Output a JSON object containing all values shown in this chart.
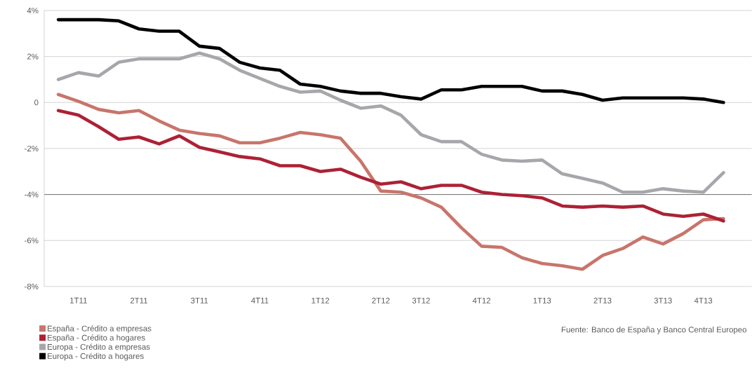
{
  "chart_data": {
    "type": "line",
    "categories": [
      null,
      "1T11",
      null,
      null,
      "2T11",
      null,
      null,
      "3T11",
      null,
      null,
      "4T11",
      null,
      null,
      "1T12",
      null,
      null,
      "2T12",
      null,
      "3T12",
      null,
      null,
      "4T12",
      null,
      null,
      "1T13",
      null,
      null,
      "2T13",
      null,
      null,
      "3T13",
      null,
      "4T13",
      null
    ],
    "ylim": [
      -8,
      4
    ],
    "yticks": [
      {
        "value": -8,
        "label": "-8%"
      },
      {
        "value": -6,
        "label": "-6%"
      },
      {
        "value": -4,
        "label": "-4%"
      },
      {
        "value": -2,
        "label": "-2%"
      },
      0,
      {
        "value": 2,
        "label": "2%"
      },
      {
        "value": 4,
        "label": "4%"
      }
    ],
    "grid": "y",
    "legend": "bottom left",
    "line_style": "solid",
    "ref_lines": [
      {
        "axis": "y",
        "value": -4,
        "color": "#595959"
      }
    ],
    "annotations": [
      "Fuente: Banco de España y Banco Central Europeo"
    ],
    "series": [
      {
        "name": "España - Crédito a empresas",
        "color": "#c8756b",
        "values": [
          0.35,
          0.05,
          -0.3,
          -0.45,
          -0.35,
          -0.8,
          -1.2,
          -1.35,
          -1.45,
          -1.75,
          -1.75,
          -1.55,
          -1.3,
          -1.4,
          -1.55,
          -2.55,
          -3.85,
          -3.9,
          -4.15,
          -4.55,
          -5.45,
          -6.25,
          -6.3,
          -6.75,
          -7.0,
          -7.1,
          -7.25,
          -6.65,
          -6.35,
          -5.85,
          -6.15,
          -5.7,
          -5.1,
          -5.05
        ]
      },
      {
        "name": "España - Crédito a hogares",
        "color": "#ad2135",
        "values": [
          -0.35,
          -0.55,
          -1.05,
          -1.6,
          -1.5,
          -1.8,
          -1.45,
          -1.95,
          -2.15,
          -2.35,
          -2.45,
          -2.75,
          -2.75,
          -3.0,
          -2.9,
          -3.25,
          -3.55,
          -3.45,
          -3.75,
          -3.6,
          -3.6,
          -3.9,
          -4.0,
          -4.05,
          -4.15,
          -4.5,
          -4.55,
          -4.5,
          -4.55,
          -4.5,
          -4.85,
          -4.95,
          -4.85,
          -5.15
        ]
      },
      {
        "name": "Europa - Crédito a empresas",
        "color": "#a6a7ab",
        "values": [
          1.0,
          1.3,
          1.15,
          1.75,
          1.9,
          1.9,
          1.9,
          2.15,
          1.9,
          1.4,
          1.05,
          0.7,
          0.45,
          0.5,
          0.1,
          -0.25,
          -0.15,
          -0.55,
          -1.4,
          -1.7,
          -1.7,
          -2.25,
          -2.5,
          -2.55,
          -2.5,
          -3.1,
          -3.3,
          -3.5,
          -3.9,
          -3.9,
          -3.75,
          -3.85,
          -3.9,
          -3.05
        ]
      },
      {
        "name": "Europa - Crédito a hogares",
        "color": "#000000",
        "values": [
          3.6,
          3.6,
          3.6,
          3.55,
          3.2,
          3.1,
          3.1,
          2.45,
          2.35,
          1.75,
          1.5,
          1.4,
          0.8,
          0.7,
          0.5,
          0.4,
          0.4,
          0.25,
          0.15,
          0.55,
          0.55,
          0.7,
          0.7,
          0.7,
          0.5,
          0.5,
          0.35,
          0.1,
          0.2,
          0.2,
          0.2,
          0.2,
          0.15,
          0.0
        ]
      }
    ]
  }
}
